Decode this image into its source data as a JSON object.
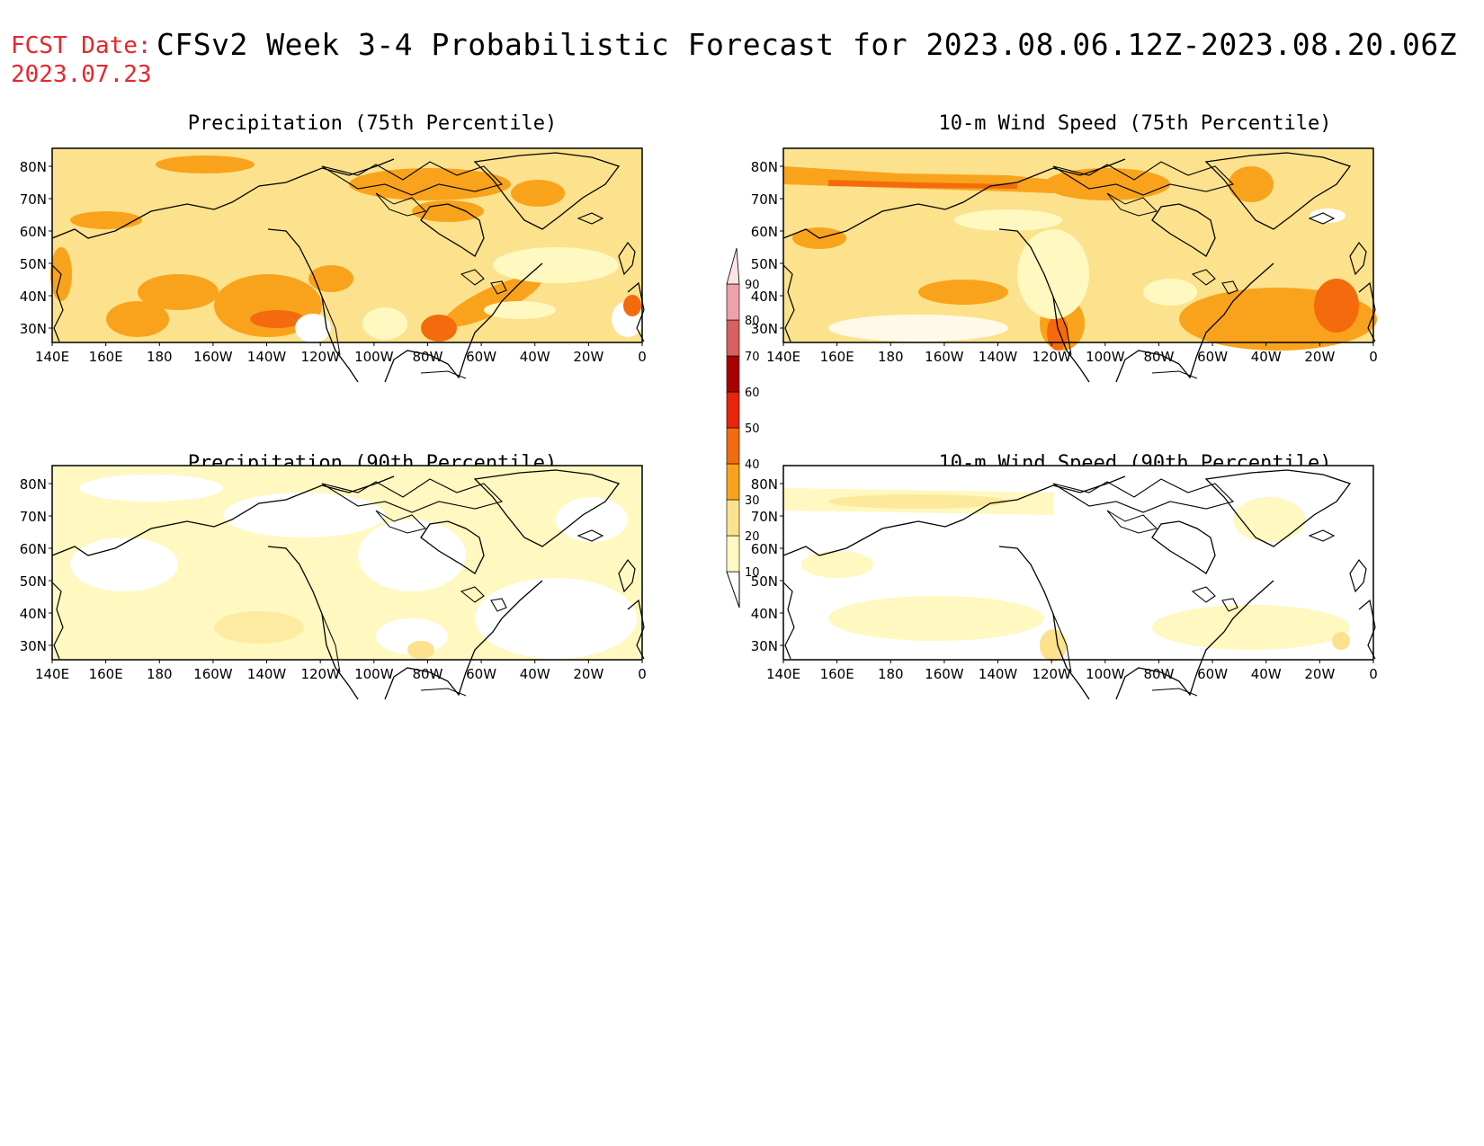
{
  "header": {
    "fcst_label": "FCST Date:",
    "fcst_date": "2023.07.23",
    "title": "CFSv2 Week 3-4 Probabilistic Forecast for 2023.08.06.12Z-2023.08.20.06Z"
  },
  "panels": [
    {
      "title": "Precipitation (75th Percentile)"
    },
    {
      "title": "10-m Wind Speed (75th Percentile)"
    },
    {
      "title": "Precipitation (90th Percentile)"
    },
    {
      "title": "10-m Wind Speed (90th Percentile)"
    }
  ],
  "lat_labels": [
    "80N",
    "70N",
    "60N",
    "50N",
    "40N",
    "30N"
  ],
  "lon_labels": [
    "140E",
    "160E",
    "180",
    "160W",
    "140W",
    "120W",
    "100W",
    "80W",
    "60W",
    "40W",
    "20W",
    "0"
  ],
  "colorbar": {
    "levels": [
      "10",
      "20",
      "30",
      "40",
      "50",
      "60",
      "70",
      "80",
      "90"
    ],
    "colors": [
      "#fff8c0",
      "#fce28c",
      "#f9a31c",
      "#f46b0e",
      "#e8240c",
      "#a80000",
      "#d86060",
      "#f0a0a8",
      "#fde3e6"
    ]
  },
  "colors": {
    "fcst_red": "#e8262b",
    "shade_10_20": "#fff8c0",
    "shade_20_30": "#fce28c",
    "shade_30_40": "#f9a31c",
    "shade_40_50": "#f46b0e",
    "shade_50_60": "#e8240c"
  }
}
